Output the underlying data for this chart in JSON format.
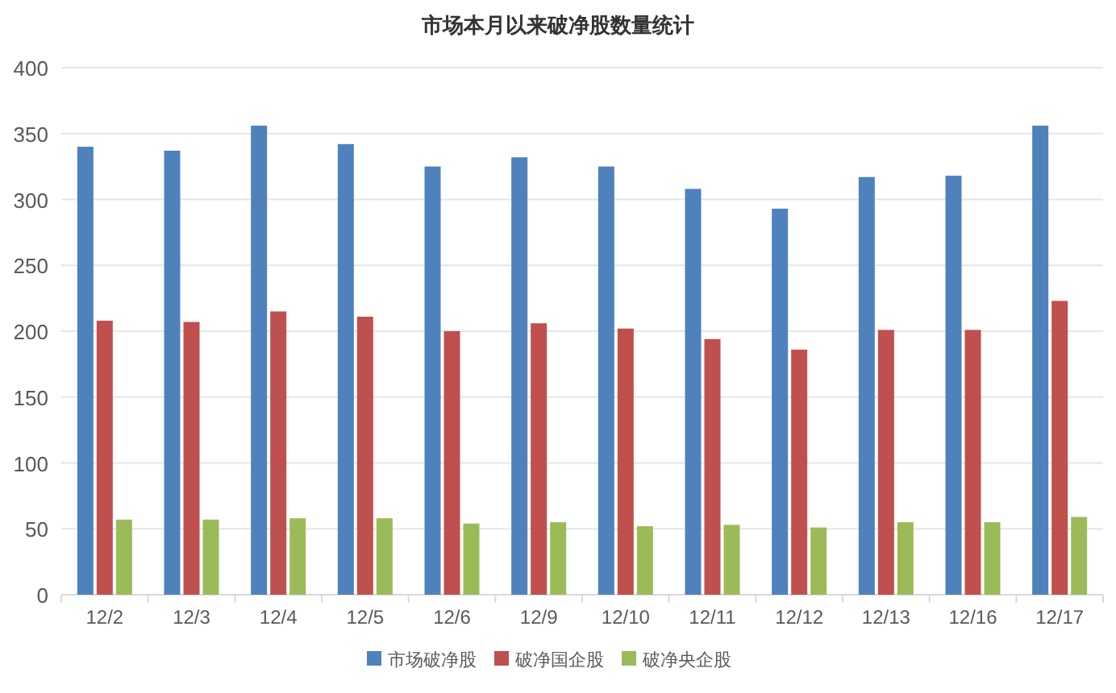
{
  "chart_data": {
    "type": "bar",
    "title": "市场本月以来破净股数量统计",
    "categories": [
      "12/2",
      "12/3",
      "12/4",
      "12/5",
      "12/6",
      "12/9",
      "12/10",
      "12/11",
      "12/12",
      "12/13",
      "12/16",
      "12/17"
    ],
    "series": [
      {
        "name": "市场破净股",
        "color": "#4f81bd",
        "values": [
          340,
          337,
          356,
          342,
          325,
          332,
          325,
          308,
          293,
          317,
          318,
          356
        ]
      },
      {
        "name": "破净国企股",
        "color": "#c0504d",
        "values": [
          208,
          207,
          215,
          211,
          200,
          206,
          202,
          194,
          186,
          201,
          201,
          223
        ]
      },
      {
        "name": "破净央企股",
        "color": "#9bbb59",
        "values": [
          57,
          57,
          58,
          58,
          54,
          55,
          52,
          53,
          51,
          55,
          55,
          59
        ]
      }
    ],
    "ylim": [
      0,
      400
    ],
    "yticks": [
      0,
      50,
      100,
      150,
      200,
      250,
      300,
      350,
      400
    ],
    "grid": "y",
    "legend": "bottom"
  }
}
